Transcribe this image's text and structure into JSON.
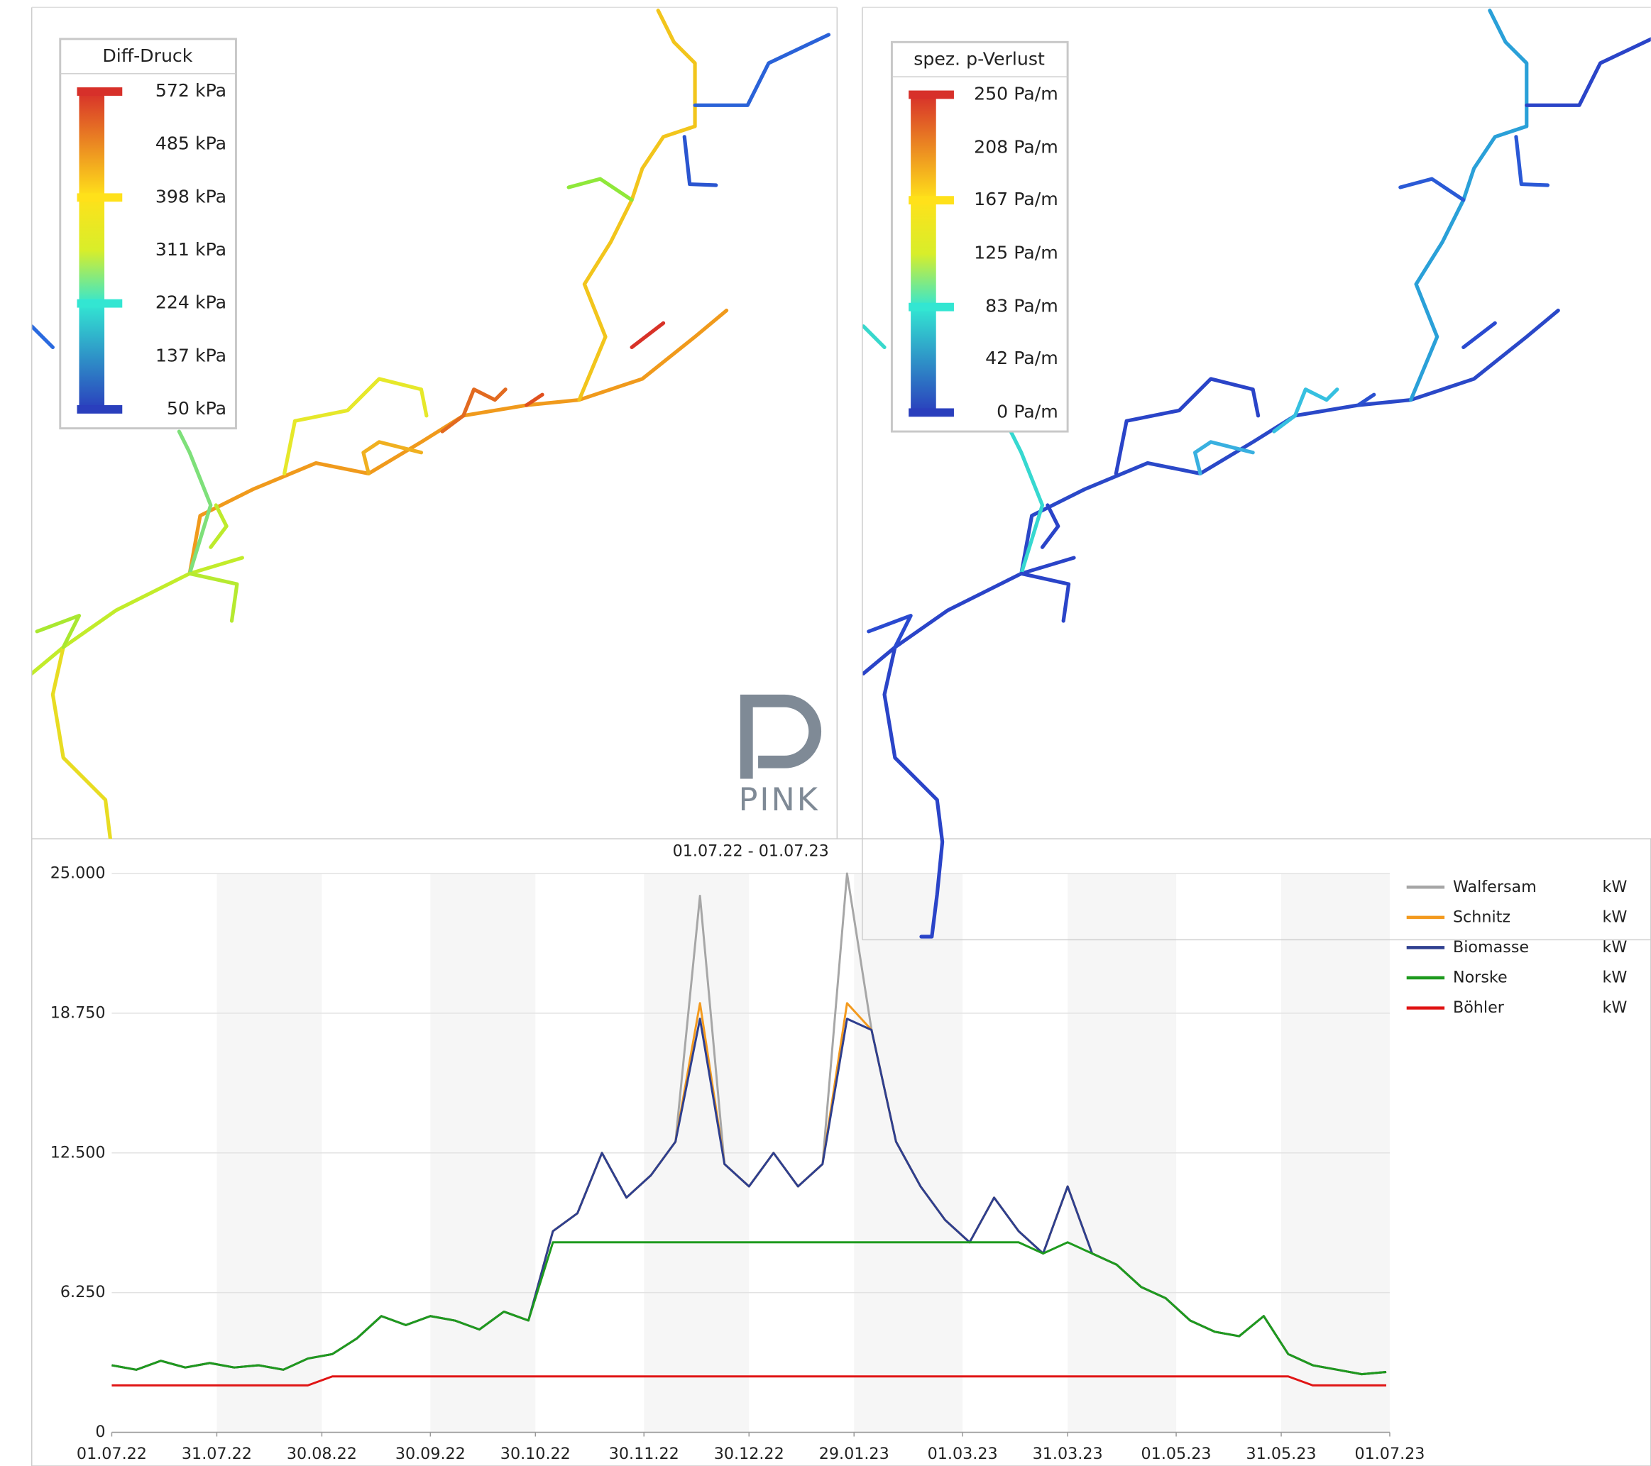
{
  "maps": [
    {
      "legend": {
        "title": "Diff-Druck",
        "ticks": [
          {
            "value": 572,
            "label": "572 kPa"
          },
          {
            "value": 485,
            "label": "485 kPa"
          },
          {
            "value": 398,
            "label": "398 kPa"
          },
          {
            "value": 311,
            "label": "311 kPa"
          },
          {
            "value": 224,
            "label": "224 kPa"
          },
          {
            "value": 137,
            "label": "137 kPa"
          },
          {
            "value": 50,
            "label": "50 kPa"
          }
        ]
      }
    },
    {
      "legend": {
        "title": "spez. p-Verlust",
        "ticks": [
          {
            "value": 250,
            "label": "250 Pa/m"
          },
          {
            "value": 208,
            "label": "208 Pa/m"
          },
          {
            "value": 167,
            "label": "167 Pa/m"
          },
          {
            "value": 125,
            "label": "125 Pa/m"
          },
          {
            "value": 83,
            "label": "83 Pa/m"
          },
          {
            "value": 42,
            "label": "42 Pa/m"
          },
          {
            "value": 0,
            "label": "0 Pa/m"
          }
        ]
      }
    }
  ],
  "logo": "PINK",
  "chart_data": {
    "type": "line",
    "subtitle": "01.07.22 - 01.07.23",
    "stacked": true,
    "x": [
      "01.07.22",
      "08.07.22",
      "15.07.22",
      "22.07.22",
      "29.07.22",
      "05.08.22",
      "12.08.22",
      "19.08.22",
      "26.08.22",
      "02.09.22",
      "09.09.22",
      "16.09.22",
      "23.09.22",
      "30.09.22",
      "07.10.22",
      "14.10.22",
      "21.10.22",
      "28.10.22",
      "04.11.22",
      "11.11.22",
      "18.11.22",
      "25.11.22",
      "02.12.22",
      "09.12.22",
      "16.12.22",
      "23.12.22",
      "30.12.22",
      "06.01.23",
      "13.01.23",
      "20.01.23",
      "27.01.23",
      "03.02.23",
      "10.02.23",
      "17.02.23",
      "24.02.23",
      "03.03.23",
      "10.03.23",
      "17.03.23",
      "24.03.23",
      "31.03.23",
      "07.04.23",
      "14.04.23",
      "21.04.23",
      "28.04.23",
      "05.05.23",
      "12.05.23",
      "19.05.23",
      "26.05.23",
      "02.06.23",
      "09.06.23",
      "16.06.23",
      "23.06.23",
      "30.06.23"
    ],
    "xlim": [
      "01.07.22",
      "01.07.23"
    ],
    "xticks": [
      "01.07.22",
      "31.07.22",
      "30.08.22",
      "30.09.22",
      "30.10.22",
      "30.11.22",
      "30.12.22",
      "29.01.23",
      "01.03.23",
      "31.03.23",
      "01.05.23",
      "31.05.23",
      "01.07.23"
    ],
    "ylim": [
      0,
      25000
    ],
    "yticks": [
      0,
      {
        "value": 6250,
        "label": "6.250"
      },
      {
        "value": 12500,
        "label": "12.500"
      },
      {
        "value": 18750,
        "label": "18.750"
      },
      {
        "value": 25000,
        "label": "25.000"
      }
    ],
    "grid": true,
    "series": [
      {
        "name": "Walfersam",
        "unit": "kW",
        "color": "#a6a6a6",
        "values": [
          0,
          0,
          0,
          0,
          0,
          0,
          0,
          0,
          0,
          0,
          0,
          0,
          0,
          0,
          0,
          0,
          0,
          0,
          0,
          0,
          0,
          0,
          0,
          0,
          4800,
          0,
          0,
          0,
          0,
          0,
          5800,
          0,
          0,
          0,
          0,
          0,
          0,
          0,
          0,
          0,
          0,
          0,
          0,
          0,
          0,
          0,
          0,
          0,
          0,
          0,
          0,
          0,
          0
        ]
      },
      {
        "name": "Schnitz",
        "unit": "kW",
        "color": "#f39a1e",
        "values": [
          0,
          0,
          0,
          0,
          0,
          0,
          0,
          0,
          0,
          0,
          0,
          0,
          0,
          0,
          0,
          0,
          0,
          0,
          0,
          0,
          0,
          0,
          0,
          0,
          700,
          0,
          0,
          0,
          0,
          0,
          700,
          0,
          0,
          0,
          0,
          0,
          0,
          0,
          0,
          0,
          0,
          0,
          0,
          0,
          0,
          0,
          0,
          0,
          0,
          0,
          0,
          0,
          0
        ]
      },
      {
        "name": "Biomasse",
        "unit": "kW",
        "color": "#2e3f8f",
        "values": [
          0,
          0,
          0,
          0,
          0,
          0,
          0,
          0,
          0,
          0,
          0,
          0,
          0,
          0,
          0,
          0,
          0,
          0,
          500,
          1300,
          4000,
          2000,
          3000,
          4500,
          10000,
          3500,
          2500,
          4000,
          2500,
          3500,
          10000,
          9500,
          4500,
          2500,
          1000,
          0,
          2000,
          500,
          0,
          2500,
          0,
          0,
          0,
          0,
          0,
          0,
          0,
          0,
          0,
          0,
          0,
          0,
          0
        ]
      },
      {
        "name": "Norske",
        "unit": "kW",
        "color": "#1e9a1e",
        "values": [
          900,
          700,
          1100,
          800,
          1000,
          800,
          900,
          700,
          1200,
          1000,
          1700,
          2700,
          2300,
          2700,
          2500,
          2100,
          2900,
          2500,
          6000,
          6000,
          6000,
          6000,
          6000,
          6000,
          6000,
          6000,
          6000,
          6000,
          6000,
          6000,
          6000,
          6000,
          6000,
          6000,
          6000,
          6000,
          6000,
          6000,
          5500,
          6000,
          5500,
          5000,
          4000,
          3500,
          2500,
          2000,
          1800,
          2700,
          1000,
          900,
          700,
          500,
          600
        ]
      },
      {
        "name": "Böhler",
        "unit": "kW",
        "color": "#e01414",
        "values": [
          2100,
          2100,
          2100,
          2100,
          2100,
          2100,
          2100,
          2100,
          2100,
          2500,
          2500,
          2500,
          2500,
          2500,
          2500,
          2500,
          2500,
          2500,
          2500,
          2500,
          2500,
          2500,
          2500,
          2500,
          2500,
          2500,
          2500,
          2500,
          2500,
          2500,
          2500,
          2500,
          2500,
          2500,
          2500,
          2500,
          2500,
          2500,
          2500,
          2500,
          2500,
          2500,
          2500,
          2500,
          2500,
          2500,
          2500,
          2500,
          2500,
          2100,
          2100,
          2100,
          2100
        ]
      }
    ]
  }
}
